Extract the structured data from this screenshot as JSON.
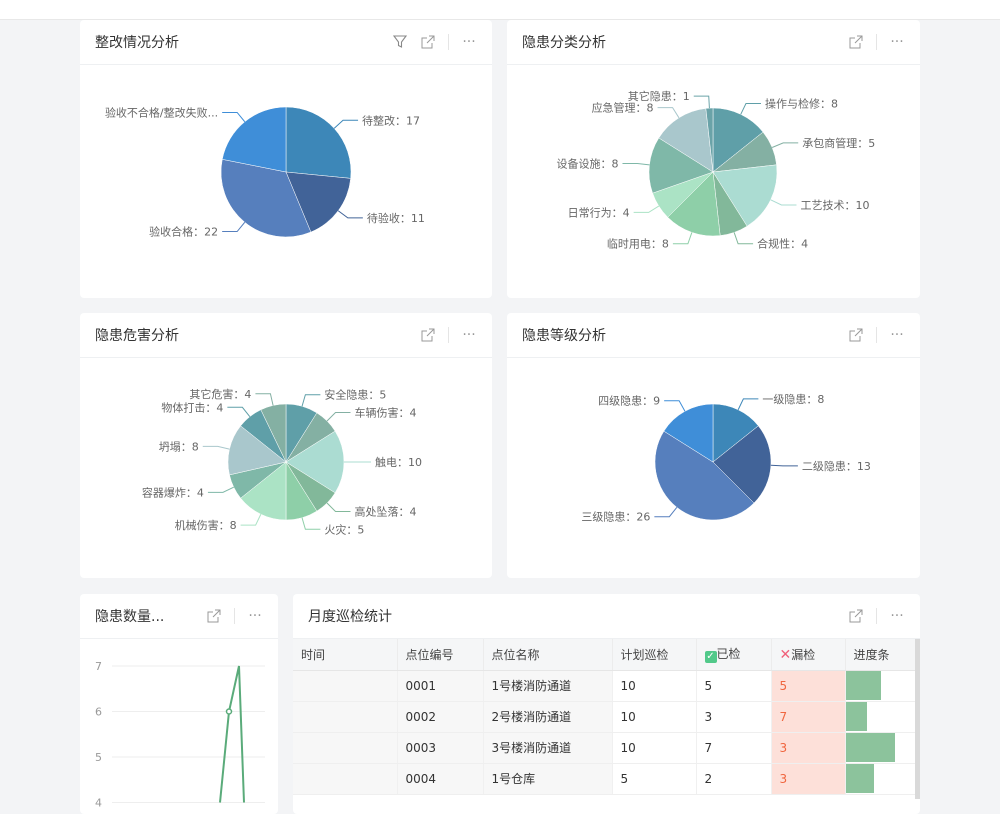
{
  "cards": {
    "rectification": {
      "title": "整改情况分析"
    },
    "category": {
      "title": "隐患分类分析"
    },
    "harm": {
      "title": "隐患危害分析"
    },
    "level": {
      "title": "隐患等级分析"
    },
    "count": {
      "title": "隐患数量..."
    },
    "monthly": {
      "title": "月度巡检统计"
    }
  },
  "icons": {
    "filter": "filter-icon",
    "expand": "external-link-icon",
    "more": "more-icon",
    "more_glyph": "···"
  },
  "chart_data": [
    {
      "type": "pie",
      "id": "rectification",
      "colors": [
        "#3d87b8",
        "#416398",
        "#567fbd",
        "#3f8ed8"
      ],
      "slices": [
        {
          "label": "待整改：17",
          "value": 17
        },
        {
          "label": "待验收：11",
          "value": 11
        },
        {
          "label": "验收合格：22",
          "value": 22
        },
        {
          "label": "验收不合格/整改失败...",
          "value": 14
        }
      ]
    },
    {
      "type": "pie",
      "id": "category",
      "colors": [
        "#5f9fa8",
        "#84b0a3",
        "#abdcd2",
        "#82b89a",
        "#8ecfa8",
        "#abe3c5",
        "#7fb8a8",
        "#a9c7cc",
        "#6aa3a8"
      ],
      "slices": [
        {
          "label": "操作与检修：8",
          "value": 8
        },
        {
          "label": "承包商管理：5",
          "value": 5
        },
        {
          "label": "工艺技术：10",
          "value": 10
        },
        {
          "label": "合规性：4",
          "value": 4
        },
        {
          "label": "临时用电：8",
          "value": 8
        },
        {
          "label": "日常行为：4",
          "value": 4
        },
        {
          "label": "设备设施：8",
          "value": 8
        },
        {
          "label": "应急管理：8",
          "value": 8
        },
        {
          "label": "其它隐患：1",
          "value": 1
        }
      ]
    },
    {
      "type": "pie",
      "id": "harm",
      "colors": [
        "#5f9fa8",
        "#84b0a3",
        "#abdcd2",
        "#82b89a",
        "#8ecfa8",
        "#abe3c5",
        "#7fb8a8",
        "#a9c7cc",
        "#5f9fa8",
        "#84b0a3"
      ],
      "slices": [
        {
          "label": "安全隐患：5",
          "value": 5
        },
        {
          "label": "车辆伤害：4",
          "value": 4
        },
        {
          "label": "触电：10",
          "value": 10
        },
        {
          "label": "高处坠落：4",
          "value": 4
        },
        {
          "label": "火灾：5",
          "value": 5
        },
        {
          "label": "机械伤害：8",
          "value": 8
        },
        {
          "label": "容器爆炸：4",
          "value": 4
        },
        {
          "label": "坍塌：8",
          "value": 8
        },
        {
          "label": "物体打击：4",
          "value": 4
        },
        {
          "label": "其它危害：4",
          "value": 4
        }
      ]
    },
    {
      "type": "pie",
      "id": "level",
      "colors": [
        "#3d87b8",
        "#416398",
        "#567fbd",
        "#3f8ed8"
      ],
      "slices": [
        {
          "label": "一级隐患：8",
          "value": 8
        },
        {
          "label": "二级隐患：13",
          "value": 13
        },
        {
          "label": "三级隐患：26",
          "value": 26
        },
        {
          "label": "四级隐患：9",
          "value": 9
        }
      ]
    },
    {
      "type": "line",
      "id": "count",
      "color": "#5aab7a",
      "y_ticks": [
        "7",
        "6",
        "5",
        "4"
      ],
      "grid": true,
      "y": [
        4,
        6,
        7,
        4
      ]
    }
  ],
  "table": {
    "headers": [
      "时间",
      "点位编号",
      "点位名称",
      "计划巡检",
      "已检",
      "漏检",
      "进度条"
    ],
    "checked_icon": "check-square-icon",
    "missed_icon": "x-icon",
    "rows": [
      {
        "time": "",
        "code": "0001",
        "name": "1号楼消防通道",
        "plan": "10",
        "done": "5",
        "missed": "5",
        "progress": 0.5
      },
      {
        "time": "",
        "code": "0002",
        "name": "2号楼消防通道",
        "plan": "10",
        "done": "3",
        "missed": "7",
        "progress": 0.3
      },
      {
        "time": "",
        "code": "0003",
        "name": "3号楼消防通道",
        "plan": "10",
        "done": "7",
        "missed": "3",
        "progress": 0.7
      },
      {
        "time": "",
        "code": "0004",
        "name": "1号仓库",
        "plan": "5",
        "done": "2",
        "missed": "3",
        "progress": 0.4
      }
    ]
  }
}
